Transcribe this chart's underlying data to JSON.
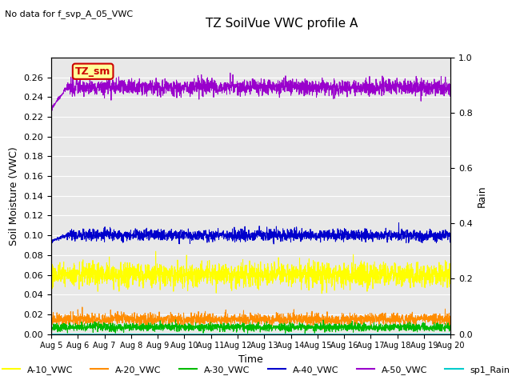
{
  "title": "TZ SoilVue VWC profile A",
  "no_data_text": "No data for f_svp_A_05_VWC",
  "xlabel": "Time",
  "ylabel_left": "Soil Moisture (VWC)",
  "ylabel_right": "Rain",
  "ylim_left": [
    0,
    0.28
  ],
  "ylim_right": [
    0.0,
    1.0
  ],
  "yticks_left": [
    0.0,
    0.02,
    0.04,
    0.06,
    0.08,
    0.1,
    0.12,
    0.14,
    0.16,
    0.18,
    0.2,
    0.22,
    0.24,
    0.26
  ],
  "yticks_right": [
    0.0,
    0.2,
    0.4,
    0.6,
    0.8,
    1.0
  ],
  "n_points": 2160,
  "series": {
    "A_10_VWC": {
      "color": "#ffff00",
      "mean": 0.06,
      "noise_scale": 0.006,
      "label": "A-10_VWC"
    },
    "A_20_VWC": {
      "color": "#ff8c00",
      "mean": 0.015,
      "noise_scale": 0.003,
      "label": "A-20_VWC"
    },
    "A_30_VWC": {
      "color": "#00bb00",
      "mean": 0.007,
      "noise_scale": 0.002,
      "label": "A-30_VWC"
    },
    "A_40_VWC": {
      "color": "#0000cc",
      "mean": 0.1,
      "noise_scale": 0.003,
      "label": "A-40_VWC"
    },
    "A_50_VWC": {
      "color": "#9900cc",
      "mean": 0.25,
      "noise_scale": 0.004,
      "label": "A-50_VWC"
    },
    "sp1_Rain": {
      "color": "#00cccc",
      "mean": 0.0,
      "noise_scale": 0.0,
      "label": "sp1_Rain"
    }
  },
  "annotation_box": {
    "text": "TZ_sm",
    "facecolor": "#ffff99",
    "edgecolor": "#cc0000",
    "fontsize": 9,
    "textcolor": "#cc0000"
  },
  "background_color": "#e8e8e8",
  "grid_color": "white",
  "linewidth": 0.7,
  "figsize": [
    6.4,
    4.8
  ],
  "dpi": 100
}
